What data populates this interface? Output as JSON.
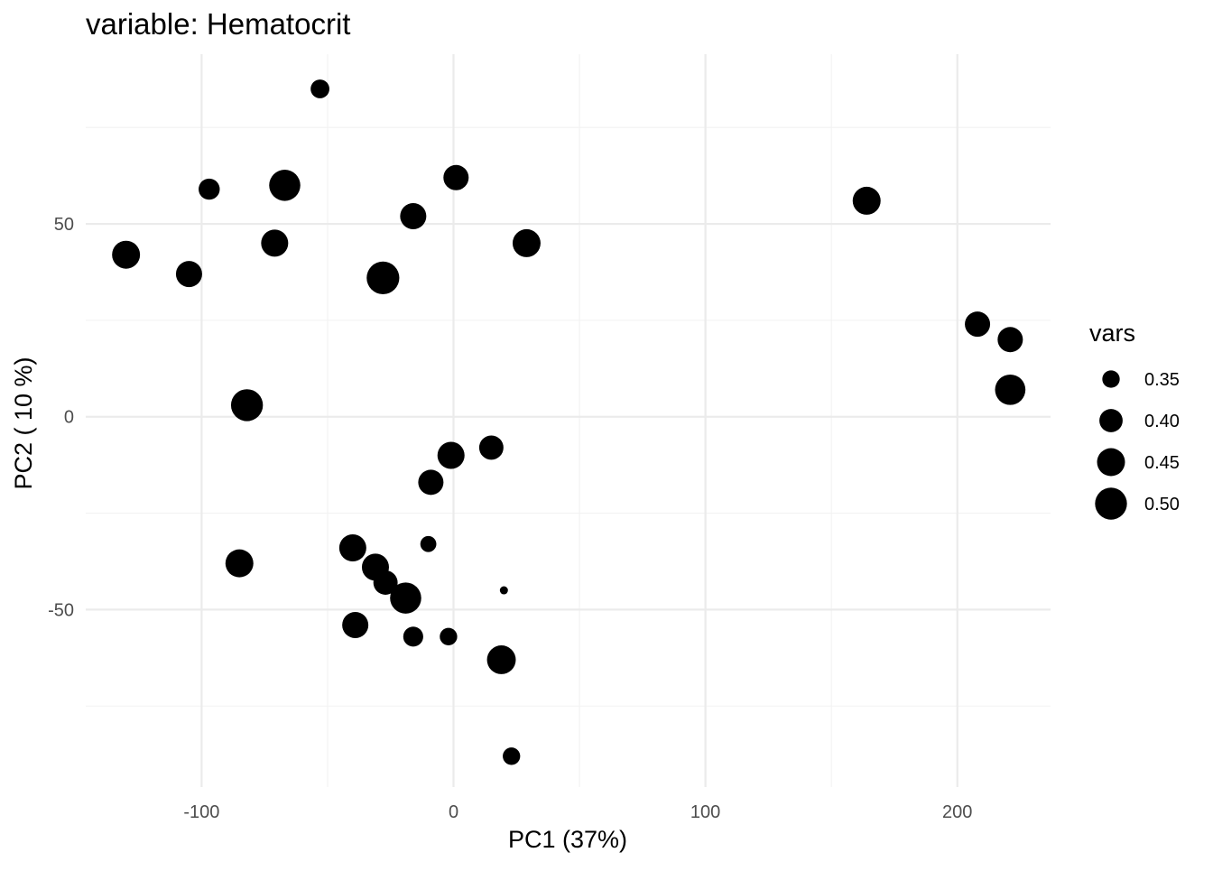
{
  "chart_data": {
    "type": "scatter",
    "title": "variable: Hematocrit",
    "xlabel": "PC1 (37%)",
    "ylabel": "PC2 ( 10 %)",
    "xlim": [
      -146,
      237
    ],
    "ylim": [
      -96,
      94
    ],
    "x_major_ticks": [
      -100,
      0,
      100,
      200
    ],
    "x_minor_ticks": [
      -50,
      50,
      150
    ],
    "y_major_ticks": [
      -50,
      0,
      50
    ],
    "y_minor_ticks": [
      -75,
      -25,
      25,
      75
    ],
    "x_tick_labels": [
      "-100",
      "0",
      "100",
      "200"
    ],
    "y_tick_labels": [
      "-50",
      "0",
      "50"
    ],
    "grid": true,
    "point_color": "#000000",
    "size_range": [
      0.3,
      0.52
    ],
    "legend": {
      "title": "vars",
      "position": "right",
      "values": [
        0.35,
        0.4,
        0.45,
        0.5
      ],
      "labels": [
        "0.35",
        "0.40",
        "0.45",
        "0.50"
      ]
    },
    "points": [
      {
        "x": -53,
        "y": 85,
        "size": 0.36
      },
      {
        "x": -97,
        "y": 59,
        "size": 0.38
      },
      {
        "x": -67,
        "y": 60,
        "size": 0.49
      },
      {
        "x": 1,
        "y": 62,
        "size": 0.42
      },
      {
        "x": -16,
        "y": 52,
        "size": 0.43
      },
      {
        "x": -130,
        "y": 42,
        "size": 0.45
      },
      {
        "x": -71,
        "y": 45,
        "size": 0.44
      },
      {
        "x": -105,
        "y": 37,
        "size": 0.43
      },
      {
        "x": -28,
        "y": 36,
        "size": 0.51
      },
      {
        "x": 29,
        "y": 45,
        "size": 0.45
      },
      {
        "x": 164,
        "y": 56,
        "size": 0.45
      },
      {
        "x": 208,
        "y": 24,
        "size": 0.42
      },
      {
        "x": 221,
        "y": 20,
        "size": 0.42
      },
      {
        "x": 221,
        "y": 7,
        "size": 0.48
      },
      {
        "x": -82,
        "y": 3,
        "size": 0.5
      },
      {
        "x": 15,
        "y": -8,
        "size": 0.41
      },
      {
        "x": -1,
        "y": -10,
        "size": 0.44
      },
      {
        "x": -9,
        "y": -17,
        "size": 0.42
      },
      {
        "x": -10,
        "y": -33,
        "size": 0.34
      },
      {
        "x": -40,
        "y": -34,
        "size": 0.44
      },
      {
        "x": -31,
        "y": -39,
        "size": 0.44
      },
      {
        "x": -27,
        "y": -43,
        "size": 0.41
      },
      {
        "x": -19,
        "y": -47,
        "size": 0.49
      },
      {
        "x": -85,
        "y": -38,
        "size": 0.45
      },
      {
        "x": 20,
        "y": -45,
        "size": 0.3
      },
      {
        "x": -39,
        "y": -54,
        "size": 0.43
      },
      {
        "x": -16,
        "y": -57,
        "size": 0.37
      },
      {
        "x": -2,
        "y": -57,
        "size": 0.35
      },
      {
        "x": 19,
        "y": -63,
        "size": 0.46
      },
      {
        "x": 23,
        "y": -88,
        "size": 0.35
      }
    ]
  }
}
